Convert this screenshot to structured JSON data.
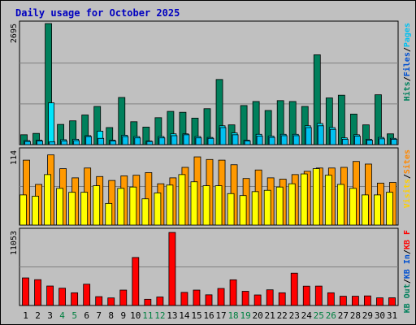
{
  "chart_data": {
    "type": "bar",
    "title": "Daily usage for October 2025",
    "categories": [
      "1",
      "2",
      "3",
      "4",
      "5",
      "6",
      "7",
      "8",
      "9",
      "10",
      "11",
      "12",
      "13",
      "14",
      "15",
      "16",
      "17",
      "18",
      "19",
      "20",
      "21",
      "22",
      "23",
      "24",
      "25",
      "26",
      "27",
      "28",
      "29",
      "30",
      "31"
    ],
    "weekend_days": [
      "4",
      "5",
      "11",
      "12",
      "18",
      "19",
      "25",
      "26"
    ],
    "panels": [
      {
        "name": "hits-panel",
        "ymax_label": "2695",
        "ymax": 2695,
        "series": [
          {
            "name": "Hits",
            "color": "#00805c",
            "values": [
              220,
              250,
              2695,
              450,
              530,
              660,
              850,
              380,
              1050,
              510,
              390,
              600,
              740,
              720,
              590,
              800,
              1450,
              440,
              870,
              960,
              760,
              980,
              960,
              850,
              2000,
              1040,
              1100,
              680,
              440,
              1110,
              240
            ]
          },
          {
            "name": "Files",
            "color": "#00e6fc",
            "values": [
              90,
              100,
              930,
              110,
              120,
              200,
              300,
              100,
              210,
              180,
              80,
              180,
              240,
              240,
              180,
              160,
              420,
              260,
              100,
              230,
              190,
              230,
              230,
              420,
              470,
              380,
              150,
              220,
              120,
              160,
              140
            ]
          },
          {
            "name": "Pages",
            "color": "#00c0f0",
            "values": [
              70,
              80,
              60,
              80,
              90,
              180,
              140,
              80,
              180,
              150,
              70,
              150,
              200,
              220,
              150,
              140,
              380,
              220,
              80,
              190,
              160,
              200,
              200,
              380,
              420,
              340,
              120,
              190,
              100,
              130,
              120
            ]
          }
        ]
      },
      {
        "name": "visits-panel",
        "ymax_label": "114",
        "ymax": 114,
        "series": [
          {
            "name": "Visits",
            "color": "#ff9900",
            "values": [
              99,
              62,
              107,
              86,
              72,
              87,
              74,
              68,
              75,
              76,
              80,
              63,
              72,
              88,
              104,
              100,
              99,
              92,
              71,
              84,
              72,
              70,
              77,
              82,
              87,
              87,
              88,
              97,
              93,
              64,
              65
            ]
          },
          {
            "name": "Sites",
            "color": "#ffff00",
            "values": [
              46,
              44,
              77,
              56,
              50,
              50,
              60,
              33,
              56,
              58,
              40,
              49,
              61,
              77,
              66,
              60,
              60,
              48,
              45,
              51,
              53,
              58,
              63,
              78,
              86,
              76,
              62,
              56,
              46,
              46,
              50
            ]
          }
        ]
      },
      {
        "name": "kb-panel",
        "ymax_label": "11053",
        "ymax": 11053,
        "series": [
          {
            "name": "KB F",
            "color": "#ff0000",
            "values": [
              4080,
              3820,
              2880,
              2560,
              1880,
              3150,
              1310,
              1120,
              2280,
              7100,
              920,
              1260,
              10800,
              1940,
              2280,
              1580,
              2520,
              3800,
              2100,
              1560,
              2320,
              1880,
              4780,
              2860,
              2870,
              1880,
              1370,
              1370,
              1420,
              1130,
              1140
            ]
          }
        ]
      }
    ],
    "right_legend": [
      {
        "panel": 0,
        "items": [
          {
            "text": "Pages",
            "color": "#00c0f0"
          },
          {
            "text": "Files",
            "color": "#0050d0"
          },
          {
            "text": "Hits",
            "color": "#00805c"
          }
        ]
      },
      {
        "panel": 1,
        "items": [
          {
            "text": "Sites",
            "color": "#ff8800"
          },
          {
            "text": "Visits",
            "color": "#ffd000"
          }
        ]
      },
      {
        "panel": 2,
        "items": [
          {
            "text": "KB F",
            "color": "#ff0000"
          },
          {
            "text": "KB In",
            "color": "#0050d0"
          },
          {
            "text": "KB Out",
            "color": "#00805c"
          }
        ]
      }
    ]
  }
}
